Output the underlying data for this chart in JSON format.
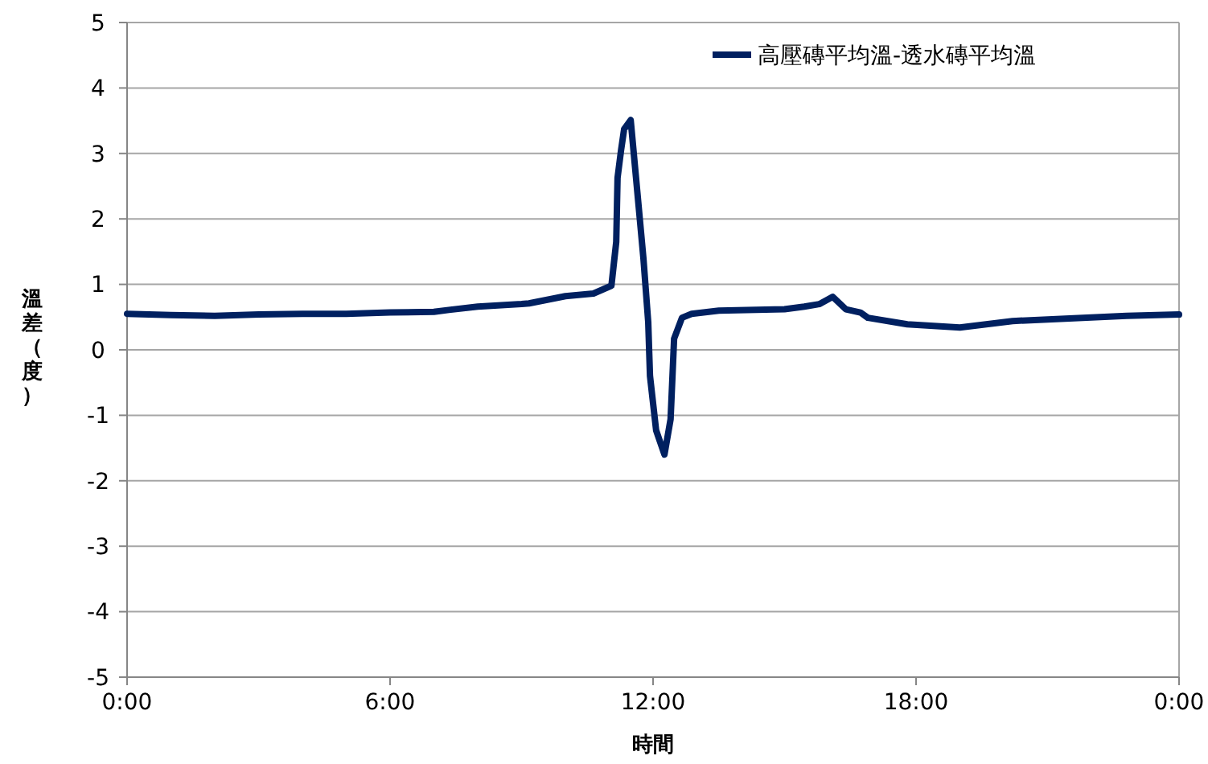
{
  "chart_data": {
    "type": "line",
    "xlabel": "時間",
    "ylabel": "溫差（度）",
    "xlim": [
      0,
      24
    ],
    "xticks": [
      {
        "value": 0,
        "label": "0:00"
      },
      {
        "value": 6,
        "label": "6:00"
      },
      {
        "value": 12,
        "label": "12:00"
      },
      {
        "value": 18,
        "label": "18:00"
      },
      {
        "value": 24,
        "label": "0:00"
      }
    ],
    "ylim": [
      -5,
      5
    ],
    "yticks": [
      -5,
      -4,
      -3,
      -2,
      -1,
      0,
      1,
      2,
      3,
      4,
      5
    ],
    "grid": "y",
    "legend": "top right",
    "marker": "none",
    "line_style": "solid",
    "series": [
      {
        "name": "高壓磚平均溫-透水磚平均溫",
        "color": "#002060",
        "x": [
          0,
          1,
          2,
          3,
          4,
          5,
          6,
          7,
          7.34,
          8,
          9,
          9.17,
          10,
          10.64,
          11.05,
          11.16,
          11.19,
          11.27,
          11.34,
          11.49,
          11.67,
          11.78,
          11.89,
          11.93,
          12.07,
          12.26,
          12.4,
          12.48,
          12.66,
          12.88,
          13.5,
          14.35,
          15,
          15.45,
          15.8,
          16.1,
          16.4,
          16.73,
          16.9,
          17.8,
          19,
          20.2,
          21.5,
          22.8,
          24
        ],
        "values": [
          0.55,
          0.53,
          0.52,
          0.54,
          0.55,
          0.55,
          0.57,
          0.58,
          0.61,
          0.66,
          0.7,
          0.71,
          0.82,
          0.86,
          0.98,
          1.65,
          2.63,
          3.05,
          3.37,
          3.51,
          2.2,
          1.4,
          0.42,
          -0.4,
          -1.23,
          -1.6,
          -1.06,
          0.17,
          0.49,
          0.55,
          0.6,
          0.61,
          0.62,
          0.66,
          0.7,
          0.81,
          0.62,
          0.57,
          0.49,
          0.39,
          0.34,
          0.44,
          0.48,
          0.52,
          0.54
        ]
      }
    ]
  }
}
